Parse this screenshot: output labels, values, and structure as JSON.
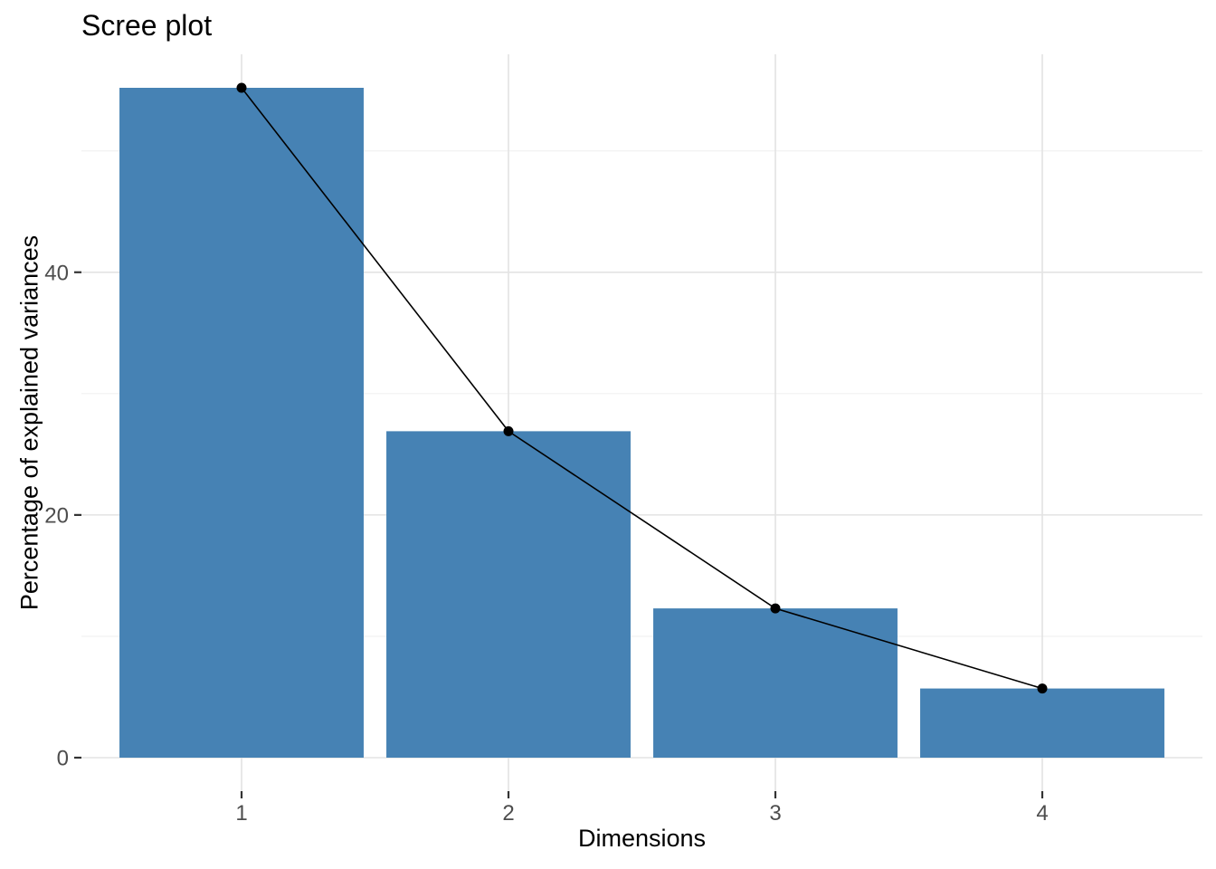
{
  "chart_data": {
    "type": "bar",
    "subtype": "scree-bar-with-line-overlay",
    "title": "Scree plot",
    "xlabel": "Dimensions",
    "ylabel": "Percentage of explained variances",
    "categories": [
      "1",
      "2",
      "3",
      "4"
    ],
    "series": [
      {
        "name": "Percentage of explained variances (bars)",
        "values": [
          55.2,
          26.9,
          12.3,
          5.7
        ]
      },
      {
        "name": "Connecting line with points",
        "values": [
          55.2,
          26.9,
          12.3,
          5.7
        ]
      }
    ],
    "values": [
      55.2,
      26.9,
      12.3,
      5.7
    ],
    "y_major_ticks": [
      0,
      20,
      40
    ],
    "y_major_tick_labels": [
      "0",
      "20",
      "40"
    ],
    "y_minor_ticks": [
      10,
      30,
      50
    ],
    "ylim": [
      -2.76,
      57.96
    ],
    "grid": "on",
    "legend": "none",
    "colors": {
      "bar_fill": "#4682B4",
      "line": "#000000",
      "point": "#000000",
      "grid_major": "#e3e3e3",
      "grid_minor": "#f0f0f0",
      "axis_tick": "#333333",
      "tick_label": "#4d4d4d",
      "title_text": "#000000",
      "background": "#ffffff"
    }
  }
}
